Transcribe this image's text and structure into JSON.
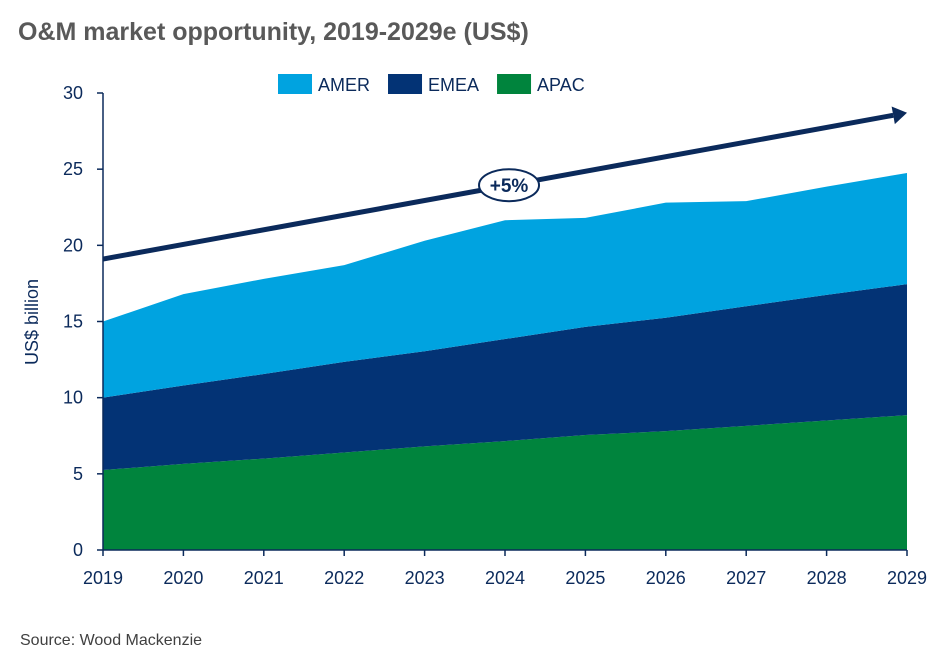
{
  "title": "O&M market opportunity, 2019-2029e (US$)",
  "source": "Source: Wood Mackenzie",
  "chart_data": {
    "type": "area",
    "stacked": true,
    "title": "O&M market opportunity, 2019-2029e (US$)",
    "xlabel": "",
    "ylabel": "US$ billion",
    "categories": [
      "2019",
      "2020",
      "2021",
      "2022",
      "2023",
      "2024",
      "2025",
      "2026",
      "2027",
      "2028",
      "2029"
    ],
    "ylim": [
      0,
      30
    ],
    "yticks": [
      0,
      5,
      10,
      15,
      20,
      25,
      30
    ],
    "grid": false,
    "legend": "top",
    "series": [
      {
        "name": "APAC",
        "color": "#00843d",
        "values": [
          5.25,
          5.65,
          6.0,
          6.4,
          6.8,
          7.15,
          7.55,
          7.8,
          8.15,
          8.5,
          8.85
        ]
      },
      {
        "name": "EMEA",
        "color": "#033375",
        "values": [
          4.75,
          5.15,
          5.55,
          5.95,
          6.25,
          6.7,
          7.1,
          7.45,
          7.85,
          8.25,
          8.6
        ]
      },
      {
        "name": "AMER",
        "color": "#00a3e0",
        "values": [
          5.0,
          6.0,
          6.25,
          6.35,
          7.25,
          7.8,
          7.15,
          7.55,
          6.9,
          7.1,
          7.3
        ]
      }
    ],
    "legend_order": [
      "AMER",
      "EMEA",
      "APAC"
    ],
    "trend_arrow": {
      "label": "+5%",
      "start": [
        "2019",
        19.1
      ],
      "end": [
        "2029",
        28.7
      ],
      "color": "#0b2a5b"
    }
  }
}
